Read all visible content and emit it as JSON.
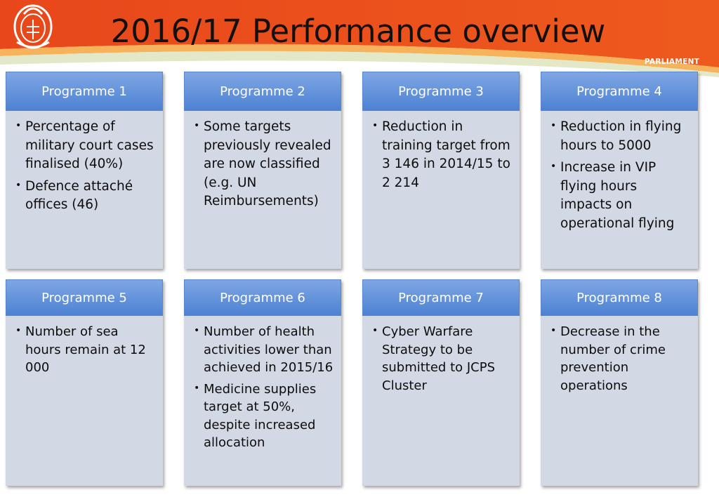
{
  "title": "2016/17 Performance overview",
  "logo": {
    "text": "PARLIAMENT",
    "icon": "parliament-crest-icon"
  },
  "colors": {
    "banner": "#e84d1c",
    "banner_light": "#f08a3a",
    "band": "#cfd8a8",
    "card_header": "#5f8fdb",
    "card_body": "#d3d9e4"
  },
  "programmes": [
    {
      "label": "Programme 1",
      "bullets": [
        "Percentage of military court cases finalised (40%)",
        "Defence attaché offices (46)"
      ]
    },
    {
      "label": "Programme 2",
      "bullets": [
        "Some targets previously revealed are now classified (e.g. UN Reimbursements)"
      ]
    },
    {
      "label": "Programme 3",
      "bullets": [
        "Reduction in training target from 3 146 in 2014/15 to 2 214"
      ]
    },
    {
      "label": "Programme 4",
      "bullets": [
        "Reduction in flying hours to 5000",
        "Increase in VIP flying hours impacts on operational flying"
      ]
    },
    {
      "label": "Programme 5",
      "bullets": [
        "Number of sea hours remain at 12 000"
      ]
    },
    {
      "label": "Programme 6",
      "bullets": [
        "Number of health activities lower than achieved in 2015/16",
        "Medicine supplies target at 50%, despite increased allocation"
      ]
    },
    {
      "label": "Programme 7",
      "bullets": [
        "Cyber Warfare Strategy to be submitted to JCPS Cluster"
      ]
    },
    {
      "label": "Programme 8",
      "bullets": [
        "Decrease in the number of crime prevention operations"
      ]
    }
  ]
}
